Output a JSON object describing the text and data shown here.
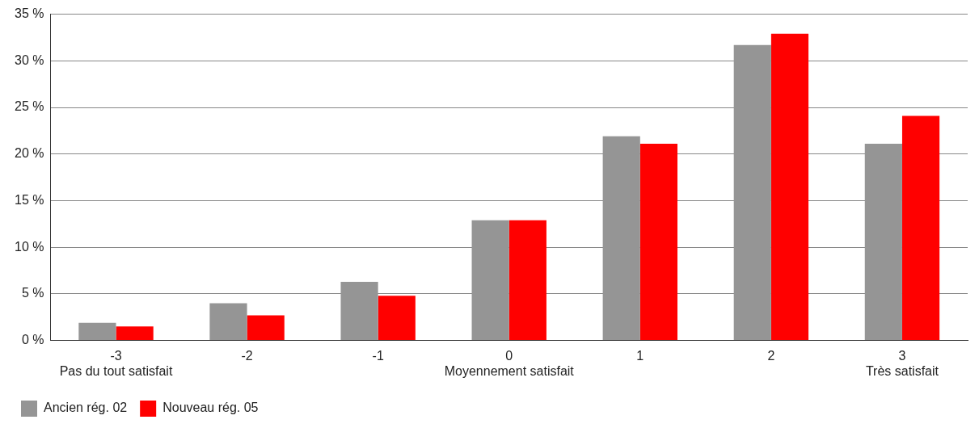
{
  "chart_data": {
    "type": "bar",
    "categories": [
      "-3\nPas du tout satisfait",
      "-2",
      "-1",
      "0\nMoyennement satisfait",
      "1",
      "2",
      "3\nTrès satisfait"
    ],
    "series": [
      {
        "name": "Ancien rég. 02",
        "color": "#959595",
        "values": [
          1.9,
          4.0,
          6.3,
          12.9,
          21.9,
          31.7,
          21.1
        ]
      },
      {
        "name": "Nouveau rég. 05",
        "color": "#ff0000",
        "values": [
          1.5,
          2.7,
          4.8,
          12.9,
          21.1,
          32.9,
          24.1
        ]
      }
    ],
    "ylim": [
      0,
      35
    ],
    "yticks": [
      {
        "value": 0,
        "label": "0 %"
      },
      {
        "value": 5,
        "label": "5 %"
      },
      {
        "value": 10,
        "label": "10 %"
      },
      {
        "value": 15,
        "label": "15 %"
      },
      {
        "value": 20,
        "label": "20 %"
      },
      {
        "value": 25,
        "label": "25 %"
      },
      {
        "value": 30,
        "label": "30 %"
      },
      {
        "value": 35,
        "label": "35 %"
      }
    ],
    "grid": "y",
    "legend": "bottom left"
  }
}
